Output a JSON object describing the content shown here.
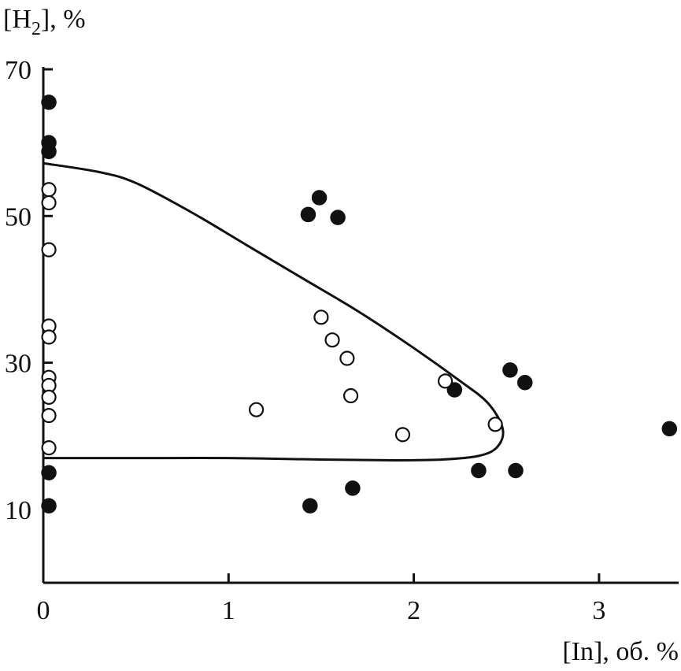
{
  "chart_data": {
    "type": "scatter",
    "title": "",
    "ylabel": {
      "main": "[H",
      "sub": "2",
      "rest": "], %"
    },
    "xlabel": "[In], об. %",
    "xlim": [
      0,
      3.4
    ],
    "ylim": [
      0,
      70
    ],
    "x_ticks": [
      0,
      1,
      2,
      3
    ],
    "x_tick_labels": [
      "0",
      "1",
      "2",
      "3"
    ],
    "y_ticks": [
      10,
      30,
      50,
      70
    ],
    "y_tick_labels": [
      "10",
      "30",
      "50",
      "70"
    ],
    "grid": false,
    "legend": "none",
    "colors": {
      "axis": "#111111",
      "filled": "#111111",
      "open_fill": "#ffffff"
    },
    "series": [
      {
        "marker": "filled-circle",
        "points": [
          [
            0.03,
            65.5
          ],
          [
            0.03,
            60.0
          ],
          [
            0.03,
            58.8
          ],
          [
            0.03,
            15.0
          ],
          [
            0.03,
            10.5
          ],
          [
            1.43,
            50.2
          ],
          [
            1.49,
            52.5
          ],
          [
            1.59,
            49.8
          ],
          [
            1.44,
            10.5
          ],
          [
            1.67,
            12.9
          ],
          [
            2.22,
            26.3
          ],
          [
            2.35,
            15.3
          ],
          [
            2.52,
            29.0
          ],
          [
            2.55,
            15.3
          ],
          [
            2.6,
            27.3
          ],
          [
            3.38,
            21.0
          ]
        ]
      },
      {
        "marker": "open-circle",
        "points": [
          [
            0.03,
            53.6
          ],
          [
            0.03,
            51.8
          ],
          [
            0.03,
            45.4
          ],
          [
            0.03,
            35.0
          ],
          [
            0.03,
            33.5
          ],
          [
            0.03,
            28.0
          ],
          [
            0.03,
            26.9
          ],
          [
            0.03,
            25.3
          ],
          [
            0.03,
            22.8
          ],
          [
            0.03,
            18.4
          ],
          [
            1.15,
            23.6
          ],
          [
            1.5,
            36.2
          ],
          [
            1.56,
            33.1
          ],
          [
            1.64,
            30.6
          ],
          [
            1.66,
            25.5
          ],
          [
            1.94,
            20.2
          ],
          [
            2.17,
            27.5
          ],
          [
            2.44,
            21.6
          ]
        ]
      },
      {
        "marker": "curve",
        "points": [
          [
            0.0,
            57.2
          ],
          [
            0.3,
            56.0
          ],
          [
            0.5,
            54.5
          ],
          [
            0.8,
            50.5
          ],
          [
            1.1,
            46.0
          ],
          [
            1.4,
            41.5
          ],
          [
            1.7,
            37.0
          ],
          [
            2.0,
            32.0
          ],
          [
            2.25,
            27.5
          ],
          [
            2.4,
            24.5
          ],
          [
            2.48,
            21.0
          ],
          [
            2.45,
            18.5
          ],
          [
            2.35,
            17.3
          ],
          [
            2.15,
            16.8
          ],
          [
            1.9,
            16.7
          ],
          [
            1.5,
            16.8
          ],
          [
            1.0,
            17.0
          ],
          [
            0.5,
            17.0
          ],
          [
            0.0,
            17.0
          ]
        ]
      }
    ]
  }
}
